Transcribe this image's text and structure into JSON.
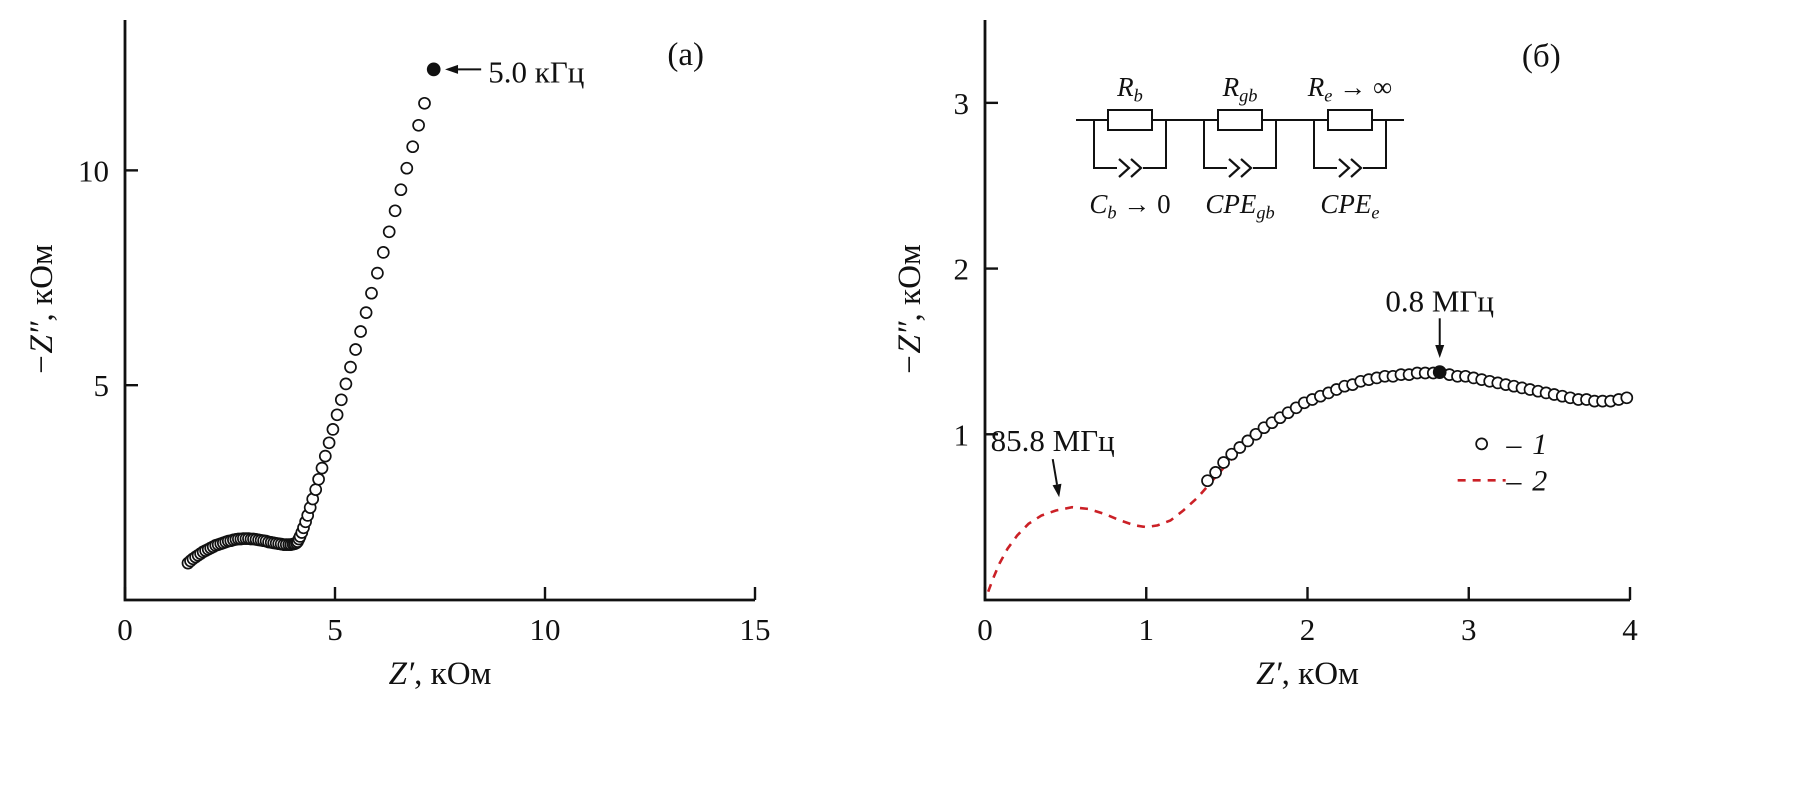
{
  "figure": {
    "background": "#ffffff",
    "ink": "#111111",
    "accent_red": "#cb2026"
  },
  "chart_data": [
    {
      "type": "scatter",
      "panel_tag": "(а)",
      "title": "",
      "xlabel": {
        "var": "Z′",
        "rest": ", кОм"
      },
      "ylabel": {
        "var": "−Z″",
        "rest": ", кОм"
      },
      "xlim": [
        0,
        15
      ],
      "ylim": [
        0,
        13.5
      ],
      "xticks": [
        0,
        5,
        10,
        15
      ],
      "yticks": [
        5,
        10
      ],
      "grid": false,
      "panel_tag_xy": [
        13.35,
        12.45
      ],
      "series": [
        {
          "name": "experimental",
          "type": "scatter",
          "marker": "open-circle",
          "color": "#111111",
          "points": [
            [
              1.5,
              0.86
            ],
            [
              1.56,
              0.91
            ],
            [
              1.62,
              0.96
            ],
            [
              1.68,
              1.0
            ],
            [
              1.74,
              1.04
            ],
            [
              1.8,
              1.08
            ],
            [
              1.86,
              1.12
            ],
            [
              1.92,
              1.15
            ],
            [
              1.98,
              1.18
            ],
            [
              2.04,
              1.21
            ],
            [
              2.1,
              1.24
            ],
            [
              2.16,
              1.27
            ],
            [
              2.22,
              1.29
            ],
            [
              2.28,
              1.31
            ],
            [
              2.34,
              1.33
            ],
            [
              2.4,
              1.35
            ],
            [
              2.46,
              1.37
            ],
            [
              2.52,
              1.38
            ],
            [
              2.58,
              1.4
            ],
            [
              2.64,
              1.41
            ],
            [
              2.7,
              1.42
            ],
            [
              2.76,
              1.42
            ],
            [
              2.82,
              1.43
            ],
            [
              2.88,
              1.43
            ],
            [
              2.94,
              1.43
            ],
            [
              3.0,
              1.42
            ],
            [
              3.06,
              1.42
            ],
            [
              3.12,
              1.41
            ],
            [
              3.18,
              1.4
            ],
            [
              3.24,
              1.39
            ],
            [
              3.3,
              1.38
            ],
            [
              3.36,
              1.37
            ],
            [
              3.42,
              1.35
            ],
            [
              3.48,
              1.34
            ],
            [
              3.54,
              1.33
            ],
            [
              3.6,
              1.32
            ],
            [
              3.66,
              1.31
            ],
            [
              3.72,
              1.3
            ],
            [
              3.78,
              1.29
            ],
            [
              3.84,
              1.29
            ],
            [
              3.9,
              1.29
            ],
            [
              3.95,
              1.29
            ],
            [
              4.0,
              1.3
            ],
            [
              4.04,
              1.31
            ],
            [
              4.08,
              1.33
            ],
            [
              4.11,
              1.36
            ],
            [
              4.14,
              1.42
            ],
            [
              4.17,
              1.48
            ],
            [
              4.21,
              1.57
            ],
            [
              4.25,
              1.68
            ],
            [
              4.3,
              1.82
            ],
            [
              4.35,
              1.97
            ],
            [
              4.41,
              2.15
            ],
            [
              4.47,
              2.35
            ],
            [
              4.54,
              2.57
            ],
            [
              4.61,
              2.81
            ],
            [
              4.69,
              3.07
            ],
            [
              4.77,
              3.35
            ],
            [
              4.86,
              3.66
            ],
            [
              4.95,
              3.97
            ],
            [
              5.05,
              4.31
            ],
            [
              5.15,
              4.66
            ],
            [
              5.26,
              5.03
            ],
            [
              5.37,
              5.42
            ],
            [
              5.49,
              5.83
            ],
            [
              5.61,
              6.25
            ],
            [
              5.74,
              6.69
            ],
            [
              5.87,
              7.14
            ],
            [
              6.01,
              7.61
            ],
            [
              6.15,
              8.09
            ],
            [
              6.29,
              8.57
            ],
            [
              6.43,
              9.06
            ],
            [
              6.57,
              9.55
            ],
            [
              6.71,
              10.05
            ],
            [
              6.85,
              10.55
            ],
            [
              6.99,
              11.05
            ],
            [
              7.13,
              11.56
            ]
          ]
        },
        {
          "name": "marked-frequency-point",
          "type": "scatter",
          "marker": "filled-circle",
          "color": "#111111",
          "points": [
            [
              7.35,
              12.35
            ]
          ]
        }
      ],
      "annotations": [
        {
          "text": "5.0 кГц",
          "text_xy": [
            8.65,
            12.28
          ],
          "anchor": "start",
          "arrow_from": [
            8.48,
            12.35
          ],
          "arrow_to": [
            7.62,
            12.35
          ]
        }
      ]
    },
    {
      "type": "scatter",
      "panel_tag": "(б)",
      "title": "",
      "xlabel": {
        "var": "Z′",
        "rest": ", кОм"
      },
      "ylabel": {
        "var": "−Z″",
        "rest": ", кОм"
      },
      "xlim": [
        0,
        4
      ],
      "ylim": [
        0,
        3.5
      ],
      "xticks": [
        0,
        1,
        2,
        3,
        4
      ],
      "yticks": [
        1,
        2,
        3
      ],
      "grid": false,
      "panel_tag_xy": [
        3.45,
        3.22
      ],
      "series": [
        {
          "name": "fit-curve",
          "type": "line",
          "dash": "8 7",
          "color": "#cb2026",
          "width": 2.6,
          "points": [
            [
              0.02,
              0.05
            ],
            [
              0.05,
              0.13
            ],
            [
              0.09,
              0.22
            ],
            [
              0.14,
              0.31
            ],
            [
              0.2,
              0.39
            ],
            [
              0.27,
              0.46
            ],
            [
              0.35,
              0.51
            ],
            [
              0.44,
              0.54
            ],
            [
              0.54,
              0.56
            ],
            [
              0.64,
              0.55
            ],
            [
              0.74,
              0.52
            ],
            [
              0.84,
              0.48
            ],
            [
              0.93,
              0.45
            ],
            [
              1.0,
              0.44
            ],
            [
              1.07,
              0.45
            ],
            [
              1.15,
              0.48
            ],
            [
              1.23,
              0.54
            ],
            [
              1.32,
              0.62
            ],
            [
              1.41,
              0.72
            ],
            [
              1.5,
              0.82
            ],
            [
              1.6,
              0.92
            ],
            [
              1.7,
              1.0
            ],
            [
              1.8,
              1.08
            ],
            [
              1.9,
              1.14
            ],
            [
              2.0,
              1.2
            ],
            [
              2.1,
              1.24
            ],
            [
              2.2,
              1.28
            ],
            [
              2.3,
              1.31
            ],
            [
              2.4,
              1.33
            ],
            [
              2.5,
              1.35
            ],
            [
              2.6,
              1.36
            ],
            [
              2.7,
              1.37
            ],
            [
              2.8,
              1.37
            ],
            [
              2.9,
              1.36
            ],
            [
              3.0,
              1.35
            ],
            [
              3.1,
              1.33
            ],
            [
              3.2,
              1.31
            ],
            [
              3.3,
              1.29
            ],
            [
              3.4,
              1.27
            ],
            [
              3.5,
              1.25
            ],
            [
              3.6,
              1.23
            ],
            [
              3.7,
              1.22
            ],
            [
              3.8,
              1.21
            ],
            [
              3.9,
              1.21
            ],
            [
              4.0,
              1.24
            ]
          ]
        },
        {
          "name": "experimental",
          "type": "scatter",
          "marker": "open-circle",
          "color": "#111111",
          "points": [
            [
              1.38,
              0.72
            ],
            [
              1.43,
              0.77
            ],
            [
              1.48,
              0.83
            ],
            [
              1.53,
              0.88
            ],
            [
              1.58,
              0.92
            ],
            [
              1.63,
              0.96
            ],
            [
              1.68,
              1.0
            ],
            [
              1.73,
              1.04
            ],
            [
              1.78,
              1.07
            ],
            [
              1.83,
              1.1
            ],
            [
              1.88,
              1.13
            ],
            [
              1.93,
              1.16
            ],
            [
              1.98,
              1.19
            ],
            [
              2.03,
              1.21
            ],
            [
              2.08,
              1.23
            ],
            [
              2.13,
              1.25
            ],
            [
              2.18,
              1.27
            ],
            [
              2.23,
              1.29
            ],
            [
              2.28,
              1.3
            ],
            [
              2.33,
              1.32
            ],
            [
              2.38,
              1.33
            ],
            [
              2.43,
              1.34
            ],
            [
              2.48,
              1.35
            ],
            [
              2.53,
              1.35
            ],
            [
              2.58,
              1.36
            ],
            [
              2.63,
              1.36
            ],
            [
              2.68,
              1.37
            ],
            [
              2.73,
              1.37
            ],
            [
              2.78,
              1.37
            ],
            [
              2.88,
              1.36
            ],
            [
              2.93,
              1.35
            ],
            [
              2.98,
              1.35
            ],
            [
              3.03,
              1.34
            ],
            [
              3.08,
              1.33
            ],
            [
              3.13,
              1.32
            ],
            [
              3.18,
              1.31
            ],
            [
              3.23,
              1.3
            ],
            [
              3.28,
              1.29
            ],
            [
              3.33,
              1.28
            ],
            [
              3.38,
              1.27
            ],
            [
              3.43,
              1.26
            ],
            [
              3.48,
              1.25
            ],
            [
              3.53,
              1.24
            ],
            [
              3.58,
              1.23
            ],
            [
              3.63,
              1.22
            ],
            [
              3.68,
              1.21
            ],
            [
              3.73,
              1.21
            ],
            [
              3.78,
              1.2
            ],
            [
              3.83,
              1.2
            ],
            [
              3.88,
              1.2
            ],
            [
              3.93,
              1.21
            ],
            [
              3.98,
              1.22
            ]
          ]
        },
        {
          "name": "marked-frequency-point",
          "type": "scatter",
          "marker": "filled-circle",
          "color": "#111111",
          "points": [
            [
              2.82,
              1.375
            ]
          ]
        }
      ],
      "annotations": [
        {
          "text": "0.8 МГц",
          "text_xy": [
            2.82,
            1.8
          ],
          "anchor": "middle",
          "arrow_from": [
            2.82,
            1.7
          ],
          "arrow_to": [
            2.82,
            1.46
          ]
        },
        {
          "text": "85.8 МГц",
          "text_xy": [
            0.42,
            0.96
          ],
          "anchor": "middle",
          "arrow_from": [
            0.42,
            0.85
          ],
          "arrow_to": [
            0.46,
            0.62
          ]
        }
      ],
      "legend": {
        "sample_x": 3.08,
        "sep_x": 3.28,
        "label_x": 3.44,
        "rows_y": [
          0.9,
          0.68
        ],
        "entries": [
          {
            "marker": "open-circle",
            "line": null,
            "color": "#111111",
            "sep": "–",
            "label": "1"
          },
          {
            "marker": null,
            "line": "dashed",
            "color": "#cb2026",
            "sep": "–",
            "label": "2"
          }
        ]
      },
      "circuit": {
        "cells": [
          {
            "top": {
              "var": "R",
              "sub": "b",
              "suffix": ""
            },
            "bottom": {
              "var": "C",
              "sub": "b",
              "suffix": " → 0"
            }
          },
          {
            "top": {
              "var": "R",
              "sub": "gb",
              "suffix": ""
            },
            "bottom": {
              "var": "CPE",
              "sub": "gb",
              "suffix": ""
            }
          },
          {
            "top": {
              "var": "R",
              "sub": "e",
              "suffix": " → ∞"
            },
            "bottom": {
              "var": "CPE",
              "sub": "e",
              "suffix": ""
            }
          }
        ]
      }
    }
  ]
}
